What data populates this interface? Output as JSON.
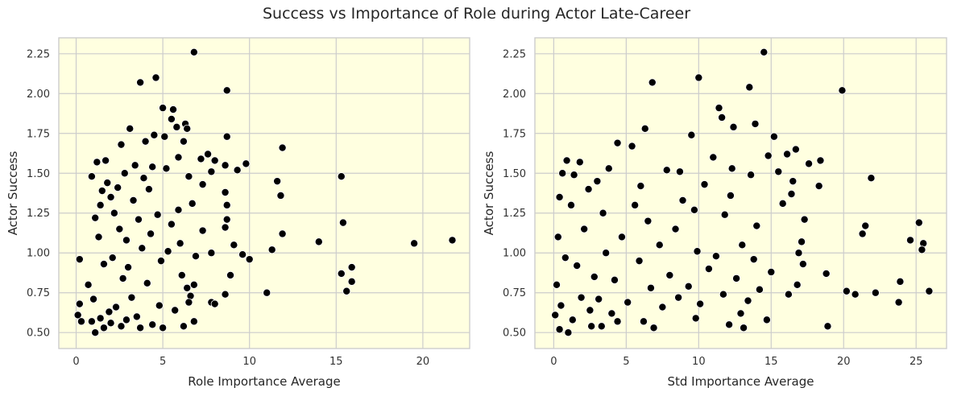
{
  "page": {
    "title": "Success vs Importance of Role during Actor Late-Career"
  },
  "colors": {
    "plot_background": "#ffffe0",
    "grid": "#cccccc",
    "marker": "#000000",
    "marker_edge": "#ffffff"
  },
  "chart_data": [
    {
      "type": "scatter",
      "title": "",
      "xlabel": "Role Importance Average",
      "ylabel": "Actor Success",
      "xlim": [
        -1.0,
        22.7
      ],
      "ylim": [
        0.4,
        2.35
      ],
      "xticks": [
        0,
        5,
        10,
        15,
        20
      ],
      "yticks": [
        0.5,
        0.75,
        1.0,
        1.25,
        1.5,
        1.75,
        2.0,
        2.25
      ],
      "grid": true,
      "legend": "none",
      "points": [
        [
          6.8,
          2.26
        ],
        [
          4.6,
          2.1
        ],
        [
          3.7,
          2.07
        ],
        [
          8.7,
          2.02
        ],
        [
          5.0,
          1.91
        ],
        [
          5.6,
          1.9
        ],
        [
          3.1,
          1.78
        ],
        [
          6.3,
          1.81
        ],
        [
          6.4,
          1.78
        ],
        [
          5.8,
          1.79
        ],
        [
          5.5,
          1.84
        ],
        [
          4.5,
          1.74
        ],
        [
          5.1,
          1.73
        ],
        [
          6.2,
          1.7
        ],
        [
          4.0,
          1.7
        ],
        [
          2.6,
          1.68
        ],
        [
          8.7,
          1.73
        ],
        [
          11.9,
          1.66
        ],
        [
          7.6,
          1.62
        ],
        [
          5.9,
          1.6
        ],
        [
          7.2,
          1.59
        ],
        [
          8.0,
          1.58
        ],
        [
          9.8,
          1.56
        ],
        [
          1.2,
          1.57
        ],
        [
          1.7,
          1.58
        ],
        [
          8.6,
          1.55
        ],
        [
          9.3,
          1.52
        ],
        [
          3.4,
          1.55
        ],
        [
          4.4,
          1.54
        ],
        [
          5.2,
          1.53
        ],
        [
          7.8,
          1.51
        ],
        [
          15.3,
          1.48
        ],
        [
          11.6,
          1.45
        ],
        [
          3.9,
          1.47
        ],
        [
          0.9,
          1.48
        ],
        [
          6.5,
          1.48
        ],
        [
          2.8,
          1.5
        ],
        [
          7.3,
          1.43
        ],
        [
          1.8,
          1.44
        ],
        [
          2.4,
          1.41
        ],
        [
          8.6,
          1.38
        ],
        [
          11.8,
          1.36
        ],
        [
          4.2,
          1.4
        ],
        [
          1.5,
          1.39
        ],
        [
          2.0,
          1.35
        ],
        [
          3.3,
          1.33
        ],
        [
          6.7,
          1.31
        ],
        [
          8.7,
          1.3
        ],
        [
          1.4,
          1.3
        ],
        [
          2.2,
          1.25
        ],
        [
          5.9,
          1.27
        ],
        [
          4.7,
          1.24
        ],
        [
          1.1,
          1.22
        ],
        [
          3.6,
          1.21
        ],
        [
          8.7,
          1.21
        ],
        [
          5.5,
          1.18
        ],
        [
          15.4,
          1.19
        ],
        [
          7.3,
          1.14
        ],
        [
          2.5,
          1.15
        ],
        [
          8.6,
          1.16
        ],
        [
          4.3,
          1.12
        ],
        [
          11.9,
          1.12
        ],
        [
          1.3,
          1.1
        ],
        [
          2.9,
          1.08
        ],
        [
          6.0,
          1.06
        ],
        [
          14.0,
          1.07
        ],
        [
          19.5,
          1.06
        ],
        [
          21.7,
          1.08
        ],
        [
          9.1,
          1.05
        ],
        [
          3.8,
          1.03
        ],
        [
          11.3,
          1.02
        ],
        [
          7.8,
          1.0
        ],
        [
          5.3,
          1.01
        ],
        [
          9.6,
          0.99
        ],
        [
          2.1,
          0.97
        ],
        [
          6.9,
          0.98
        ],
        [
          10.0,
          0.96
        ],
        [
          0.2,
          0.96
        ],
        [
          4.9,
          0.95
        ],
        [
          1.6,
          0.93
        ],
        [
          3.0,
          0.91
        ],
        [
          15.9,
          0.91
        ],
        [
          8.9,
          0.86
        ],
        [
          15.3,
          0.87
        ],
        [
          6.1,
          0.86
        ],
        [
          15.9,
          0.82
        ],
        [
          2.7,
          0.84
        ],
        [
          4.1,
          0.81
        ],
        [
          6.8,
          0.8
        ],
        [
          0.7,
          0.8
        ],
        [
          6.4,
          0.78
        ],
        [
          15.6,
          0.76
        ],
        [
          11.0,
          0.75
        ],
        [
          8.6,
          0.74
        ],
        [
          6.6,
          0.73
        ],
        [
          3.2,
          0.72
        ],
        [
          1.0,
          0.71
        ],
        [
          7.8,
          0.69
        ],
        [
          8.0,
          0.68
        ],
        [
          6.5,
          0.69
        ],
        [
          4.8,
          0.67
        ],
        [
          0.2,
          0.68
        ],
        [
          2.3,
          0.66
        ],
        [
          1.9,
          0.63
        ],
        [
          5.7,
          0.64
        ],
        [
          0.1,
          0.61
        ],
        [
          3.5,
          0.6
        ],
        [
          1.4,
          0.59
        ],
        [
          6.8,
          0.57
        ],
        [
          2.9,
          0.58
        ],
        [
          0.3,
          0.57
        ],
        [
          3.7,
          0.53
        ],
        [
          6.2,
          0.54
        ],
        [
          5.0,
          0.53
        ],
        [
          4.4,
          0.55
        ],
        [
          1.1,
          0.5
        ],
        [
          1.6,
          0.53
        ],
        [
          2.6,
          0.54
        ],
        [
          0.9,
          0.57
        ],
        [
          2.0,
          0.56
        ]
      ]
    },
    {
      "type": "scatter",
      "title": "",
      "xlabel": "Std Importance Average",
      "ylabel": "Actor Success",
      "xlim": [
        -1.3,
        27.1
      ],
      "ylim": [
        0.4,
        2.35
      ],
      "xticks": [
        0,
        5,
        10,
        15,
        20,
        25
      ],
      "yticks": [
        0.5,
        0.75,
        1.0,
        1.25,
        1.5,
        1.75,
        2.0,
        2.25
      ],
      "grid": true,
      "legend": "none",
      "points": [
        [
          14.5,
          2.26
        ],
        [
          10.0,
          2.1
        ],
        [
          6.8,
          2.07
        ],
        [
          19.9,
          2.02
        ],
        [
          13.5,
          2.04
        ],
        [
          11.4,
          1.91
        ],
        [
          13.9,
          1.81
        ],
        [
          6.3,
          1.78
        ],
        [
          12.4,
          1.79
        ],
        [
          11.6,
          1.85
        ],
        [
          15.2,
          1.73
        ],
        [
          9.5,
          1.74
        ],
        [
          4.4,
          1.69
        ],
        [
          5.4,
          1.67
        ],
        [
          16.7,
          1.65
        ],
        [
          16.1,
          1.62
        ],
        [
          17.6,
          1.56
        ],
        [
          14.8,
          1.61
        ],
        [
          11.0,
          1.6
        ],
        [
          1.8,
          1.57
        ],
        [
          18.4,
          1.58
        ],
        [
          0.9,
          1.58
        ],
        [
          3.8,
          1.53
        ],
        [
          12.3,
          1.53
        ],
        [
          8.7,
          1.51
        ],
        [
          15.5,
          1.51
        ],
        [
          7.8,
          1.52
        ],
        [
          21.9,
          1.47
        ],
        [
          1.4,
          1.49
        ],
        [
          16.5,
          1.45
        ],
        [
          13.6,
          1.49
        ],
        [
          0.6,
          1.5
        ],
        [
          3.0,
          1.45
        ],
        [
          10.4,
          1.43
        ],
        [
          18.3,
          1.42
        ],
        [
          6.0,
          1.42
        ],
        [
          2.4,
          1.4
        ],
        [
          16.4,
          1.37
        ],
        [
          12.2,
          1.36
        ],
        [
          0.4,
          1.35
        ],
        [
          8.9,
          1.33
        ],
        [
          15.8,
          1.31
        ],
        [
          5.6,
          1.3
        ],
        [
          1.2,
          1.3
        ],
        [
          17.3,
          1.21
        ],
        [
          9.7,
          1.27
        ],
        [
          3.4,
          1.25
        ],
        [
          11.8,
          1.24
        ],
        [
          6.5,
          1.2
        ],
        [
          25.2,
          1.19
        ],
        [
          14.0,
          1.17
        ],
        [
          21.5,
          1.17
        ],
        [
          2.1,
          1.15
        ],
        [
          8.4,
          1.15
        ],
        [
          24.6,
          1.08
        ],
        [
          21.3,
          1.12
        ],
        [
          25.5,
          1.06
        ],
        [
          0.3,
          1.1
        ],
        [
          4.7,
          1.1
        ],
        [
          17.1,
          1.07
        ],
        [
          13.0,
          1.05
        ],
        [
          7.3,
          1.05
        ],
        [
          25.4,
          1.02
        ],
        [
          9.9,
          1.01
        ],
        [
          16.9,
          1.0
        ],
        [
          3.6,
          1.0
        ],
        [
          11.2,
          0.98
        ],
        [
          0.8,
          0.97
        ],
        [
          13.8,
          0.96
        ],
        [
          5.9,
          0.95
        ],
        [
          17.2,
          0.93
        ],
        [
          1.6,
          0.92
        ],
        [
          10.7,
          0.9
        ],
        [
          15.0,
          0.88
        ],
        [
          18.8,
          0.87
        ],
        [
          8.0,
          0.86
        ],
        [
          2.8,
          0.85
        ],
        [
          12.6,
          0.84
        ],
        [
          4.2,
          0.83
        ],
        [
          23.9,
          0.82
        ],
        [
          16.8,
          0.8
        ],
        [
          0.2,
          0.8
        ],
        [
          9.3,
          0.79
        ],
        [
          6.7,
          0.78
        ],
        [
          14.2,
          0.77
        ],
        [
          25.9,
          0.76
        ],
        [
          20.2,
          0.76
        ],
        [
          22.2,
          0.75
        ],
        [
          20.8,
          0.74
        ],
        [
          11.7,
          0.74
        ],
        [
          16.2,
          0.74
        ],
        [
          1.9,
          0.72
        ],
        [
          8.6,
          0.72
        ],
        [
          3.1,
          0.71
        ],
        [
          13.4,
          0.7
        ],
        [
          23.8,
          0.69
        ],
        [
          5.1,
          0.69
        ],
        [
          10.1,
          0.68
        ],
        [
          0.5,
          0.67
        ],
        [
          7.5,
          0.66
        ],
        [
          2.5,
          0.64
        ],
        [
          12.9,
          0.62
        ],
        [
          4.0,
          0.62
        ],
        [
          0.1,
          0.61
        ],
        [
          9.8,
          0.59
        ],
        [
          1.3,
          0.58
        ],
        [
          14.7,
          0.58
        ],
        [
          6.2,
          0.57
        ],
        [
          4.4,
          0.57
        ],
        [
          12.1,
          0.55
        ],
        [
          18.9,
          0.54
        ],
        [
          3.3,
          0.54
        ],
        [
          13.1,
          0.53
        ],
        [
          6.9,
          0.53
        ],
        [
          1.0,
          0.5
        ],
        [
          0.4,
          0.52
        ],
        [
          2.6,
          0.54
        ]
      ]
    }
  ]
}
